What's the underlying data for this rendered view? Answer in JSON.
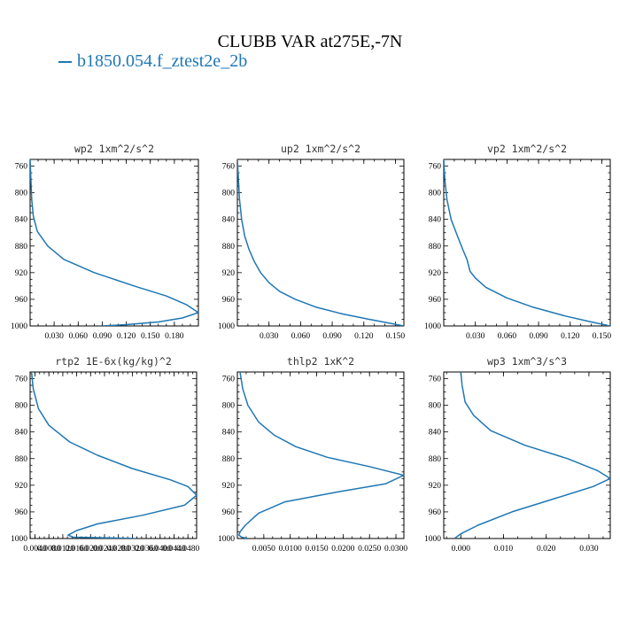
{
  "figure": {
    "title": "CLUBB VAR at275E,-7N",
    "legend_label": "b1850.054.f_ztest2e_2b"
  },
  "colors": {
    "line": "#1f77b4",
    "axes": "#000000"
  },
  "chart_data": [
    {
      "type": "line",
      "title": "wp2   1xm^2/s^2",
      "xlim": [
        0,
        0.21
      ],
      "ylim": [
        1000,
        750
      ],
      "y_inverted": true,
      "yticks": [
        760,
        800,
        840,
        880,
        920,
        960,
        1000
      ],
      "xticks": [
        0.03,
        0.06,
        0.09,
        0.12,
        0.15,
        0.18
      ],
      "xtick_labels": [
        "0.030",
        "0.060",
        "0.090",
        "0.120",
        "0.150",
        "0.180"
      ],
      "series": [
        {
          "x": [
            0.0,
            0.001,
            0.002,
            0.004,
            0.009,
            0.022,
            0.042,
            0.08,
            0.13,
            0.17,
            0.195,
            0.21,
            0.19,
            0.16,
            0.12,
            0.09
          ],
          "y": [
            750,
            780,
            810,
            835,
            858,
            880,
            900,
            920,
            940,
            955,
            968,
            980,
            988,
            994,
            998,
            1000
          ]
        }
      ]
    },
    {
      "type": "line",
      "title": "up2   1xm^2/s^2",
      "xlim": [
        0,
        0.158
      ],
      "ylim": [
        1000,
        750
      ],
      "y_inverted": true,
      "yticks": [
        760,
        800,
        840,
        880,
        920,
        960,
        1000
      ],
      "xticks": [
        0.03,
        0.06,
        0.09,
        0.12,
        0.15
      ],
      "xtick_labels": [
        "0.030",
        "0.060",
        "0.090",
        "0.120",
        "0.150"
      ],
      "series": [
        {
          "x": [
            0.0,
            0.001,
            0.002,
            0.004,
            0.007,
            0.011,
            0.016,
            0.022,
            0.03,
            0.04,
            0.055,
            0.075,
            0.1,
            0.125,
            0.145,
            0.158
          ],
          "y": [
            750,
            780,
            810,
            840,
            865,
            885,
            903,
            920,
            935,
            948,
            960,
            972,
            982,
            990,
            996,
            1000
          ]
        }
      ]
    },
    {
      "type": "line",
      "title": "vp2   1xm^2/s^2",
      "xlim": [
        0,
        0.158
      ],
      "ylim": [
        1000,
        750
      ],
      "y_inverted": true,
      "yticks": [
        760,
        800,
        840,
        880,
        920,
        960,
        1000
      ],
      "xticks": [
        0.03,
        0.06,
        0.09,
        0.12,
        0.15
      ],
      "xtick_labels": [
        "0.030",
        "0.060",
        "0.090",
        "0.120",
        "0.150"
      ],
      "series": [
        {
          "x": [
            0.0,
            0.001,
            0.003,
            0.007,
            0.013,
            0.018,
            0.022,
            0.025,
            0.03,
            0.04,
            0.06,
            0.085,
            0.115,
            0.14,
            0.158
          ],
          "y": [
            750,
            780,
            810,
            840,
            865,
            885,
            900,
            918,
            928,
            942,
            958,
            972,
            985,
            994,
            1000
          ]
        }
      ]
    },
    {
      "type": "line",
      "title": "rtp2   1E-6x(kg/kg)^2",
      "xlim": [
        0.0026,
        0.0505
      ],
      "ylim": [
        1000,
        750
      ],
      "y_inverted": true,
      "yticks": [
        760,
        800,
        840,
        880,
        920,
        960,
        1000
      ],
      "xticks": [
        0.004,
        0.008,
        0.012,
        0.016,
        0.02,
        0.024,
        0.028,
        0.032,
        0.036,
        0.04,
        0.044,
        0.048
      ],
      "xtick_labels": [
        "0.0040",
        "0.0080",
        "0.0120",
        "0.0160",
        "0.0200",
        "0.0240",
        "0.0280",
        "0.0320",
        "0.0360",
        "0.0400",
        "0.0440",
        "0.0480"
      ],
      "series": [
        {
          "x": [
            0.003,
            0.0035,
            0.005,
            0.008,
            0.014,
            0.022,
            0.032,
            0.043,
            0.048,
            0.0505,
            0.047,
            0.035,
            0.022,
            0.016,
            0.0135,
            0.015,
            0.025,
            0.033
          ],
          "y": [
            750,
            775,
            805,
            830,
            855,
            875,
            895,
            912,
            922,
            935,
            950,
            965,
            978,
            988,
            995,
            998,
            999,
            1000
          ]
        }
      ]
    },
    {
      "type": "line",
      "title": "thlp2   1xK^2",
      "xlim": [
        0,
        0.0315
      ],
      "ylim": [
        1000,
        750
      ],
      "y_inverted": true,
      "yticks": [
        760,
        800,
        840,
        880,
        920,
        960,
        1000
      ],
      "xticks": [
        0.005,
        0.01,
        0.015,
        0.02,
        0.025,
        0.03
      ],
      "xtick_labels": [
        "0.0050",
        "0.0100",
        "0.0150",
        "0.0200",
        "0.0250",
        "0.0300"
      ],
      "series": [
        {
          "x": [
            0.0005,
            0.001,
            0.002,
            0.004,
            0.007,
            0.011,
            0.017,
            0.025,
            0.0315,
            0.028,
            0.019,
            0.009,
            0.004,
            0.0015,
            0.0005,
            0.0003,
            0.0008,
            0.002
          ],
          "y": [
            750,
            775,
            800,
            825,
            845,
            862,
            878,
            892,
            905,
            918,
            930,
            945,
            962,
            980,
            990,
            995,
            998,
            1000
          ]
        }
      ]
    },
    {
      "type": "line",
      "title": "wp3   1xm^3/s^3",
      "xlim": [
        -0.004,
        0.035
      ],
      "ylim": [
        1000,
        750
      ],
      "y_inverted": true,
      "yticks": [
        760,
        800,
        840,
        880,
        920,
        960,
        1000
      ],
      "xticks": [
        0.0,
        0.01,
        0.02,
        0.03
      ],
      "xtick_labels": [
        "0.000",
        "0.010",
        "0.020",
        "0.030"
      ],
      "series": [
        {
          "x": [
            0.0,
            0.0003,
            0.001,
            0.003,
            0.007,
            0.015,
            0.025,
            0.032,
            0.035,
            0.031,
            0.022,
            0.012,
            0.004,
            0.0,
            -0.0015
          ],
          "y": [
            750,
            770,
            795,
            815,
            838,
            860,
            880,
            898,
            910,
            922,
            940,
            960,
            980,
            993,
            1000
          ]
        }
      ]
    }
  ]
}
